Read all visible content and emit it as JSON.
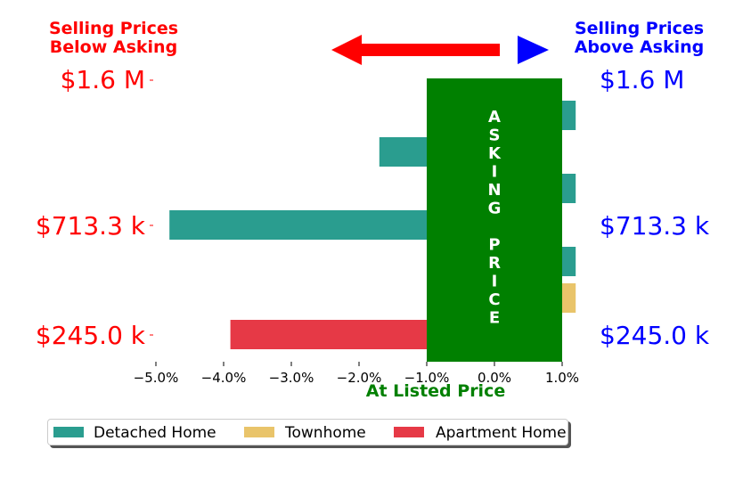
{
  "header": {
    "below_line1": "Selling Prices",
    "below_line2": "Below Asking",
    "above_line1": "Selling Prices",
    "above_line2": "Above Asking",
    "below_color": "#ff0000",
    "above_color": "#0000ff"
  },
  "price_levels": {
    "left": [
      "$1.6 M",
      "$713.3 k",
      "$245.0 k"
    ],
    "right": [
      "$1.6 M",
      "$713.3 k",
      "$245.0 k"
    ]
  },
  "asking_price": {
    "letters": [
      "A",
      "S",
      "K",
      "I",
      "N",
      "G",
      "",
      "P",
      "R",
      "I",
      "C",
      "E"
    ],
    "color": "#008000"
  },
  "chart_data": {
    "type": "bar",
    "orientation": "horizontal",
    "xlabel": "At Listed Price",
    "xlim": [
      -5.3,
      1.2
    ],
    "xticks": [
      "−5.0%",
      "−4.0%",
      "−3.0%",
      "−2.0%",
      "−1.0%",
      "0.0%",
      "1.0%"
    ],
    "xtick_values": [
      -5,
      -4,
      -3,
      -2,
      -1,
      0,
      1
    ],
    "bars": [
      {
        "series": "Detached Home",
        "value": 1.2
      },
      {
        "series": "Detached Home",
        "value": -1.7
      },
      {
        "series": "Detached Home",
        "value": 1.2
      },
      {
        "series": "Detached Home",
        "value": -4.8
      },
      {
        "series": "Detached Home",
        "value": 1.2
      },
      {
        "series": "Townhome",
        "value": 1.2
      },
      {
        "series": "Apartment Home",
        "value": -3.9
      }
    ],
    "legend": [
      {
        "name": "Detached Home",
        "color": "#2a9d8f"
      },
      {
        "name": "Townhome",
        "color": "#e9c46a"
      },
      {
        "name": "Apartment Home",
        "color": "#e63946"
      }
    ],
    "legend_position": "bottom"
  }
}
